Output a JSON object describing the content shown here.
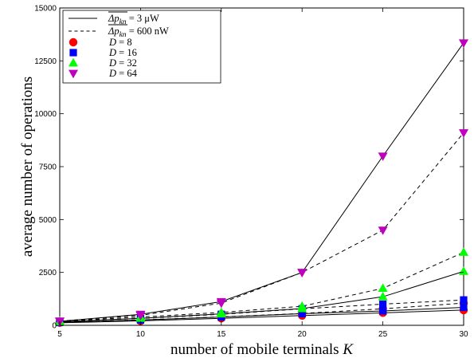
{
  "chart_data": {
    "type": "line",
    "title": "",
    "xlabel": "number of mobile terminals",
    "xlabel_symbol": "K",
    "ylabel": "average number of operations",
    "xlim": [
      5,
      30
    ],
    "ylim": [
      0,
      15000
    ],
    "xticks": [
      5,
      10,
      15,
      20,
      25,
      30
    ],
    "yticks": [
      0,
      2500,
      5000,
      7500,
      10000,
      12500,
      15000
    ],
    "xtick_labels": [
      "5",
      "10",
      "15",
      "20",
      "25",
      "30"
    ],
    "ytick_labels": [
      "0",
      "2500",
      "5000",
      "7500",
      "10000",
      "12500",
      "15000"
    ],
    "grid": false,
    "legend_position": "top-left",
    "x": [
      5,
      10,
      15,
      20,
      25,
      30
    ],
    "line_styles": [
      {
        "style": "solid",
        "label": "Δp_kn = 3 μW"
      },
      {
        "style": "dashed",
        "label": "Δp_kn = 600 nW"
      }
    ],
    "series": [
      {
        "name": "D = 8",
        "marker": "circle",
        "color": "#ff0000",
        "solid": [
          120,
          210,
          330,
          460,
          590,
          720
        ],
        "dashed": [
          150,
          250,
          400,
          560,
          780,
          1050
        ]
      },
      {
        "name": "D = 16",
        "marker": "square",
        "color": "#0000ff",
        "solid": [
          140,
          250,
          390,
          550,
          680,
          850
        ],
        "dashed": [
          190,
          320,
          520,
          780,
          1000,
          1200
        ]
      },
      {
        "name": "D = 32",
        "marker": "triangle-up",
        "color": "#00ff00",
        "solid": [
          170,
          330,
          540,
          790,
          1350,
          2550
        ],
        "dashed": [
          200,
          390,
          610,
          900,
          1750,
          3450
        ]
      },
      {
        "name": "D = 64",
        "marker": "triangle-down",
        "color": "#bf00bf",
        "solid": [
          190,
          520,
          1120,
          2500,
          8000,
          13350
        ],
        "dashed": [
          200,
          470,
          1050,
          2500,
          4500,
          9100
        ]
      }
    ]
  }
}
